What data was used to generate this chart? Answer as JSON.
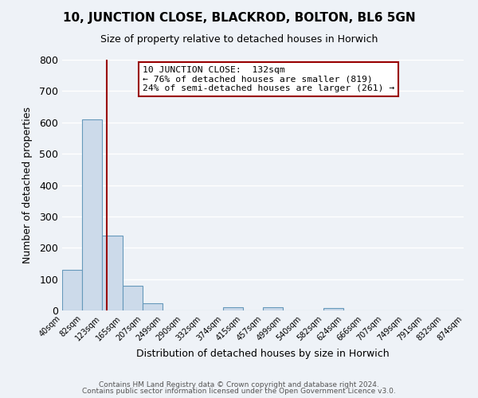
{
  "title": "10, JUNCTION CLOSE, BLACKROD, BOLTON, BL6 5GN",
  "subtitle": "Size of property relative to detached houses in Horwich",
  "xlabel": "Distribution of detached houses by size in Horwich",
  "ylabel": "Number of detached properties",
  "bar_edges": [
    40,
    82,
    123,
    165,
    207,
    249,
    290,
    332,
    374,
    415,
    457,
    499,
    540,
    582,
    624,
    666,
    707,
    749,
    791,
    832,
    874
  ],
  "bar_heights": [
    130,
    610,
    240,
    80,
    22,
    0,
    0,
    0,
    10,
    0,
    10,
    0,
    0,
    8,
    0,
    0,
    0,
    0,
    0,
    0
  ],
  "bar_color": "#ccdaea",
  "bar_edgecolor": "#6699bb",
  "tick_labels": [
    "40sqm",
    "82sqm",
    "123sqm",
    "165sqm",
    "207sqm",
    "249sqm",
    "290sqm",
    "332sqm",
    "374sqm",
    "415sqm",
    "457sqm",
    "499sqm",
    "540sqm",
    "582sqm",
    "624sqm",
    "666sqm",
    "707sqm",
    "749sqm",
    "791sqm",
    "832sqm",
    "874sqm"
  ],
  "ylim": [
    0,
    800
  ],
  "yticks": [
    0,
    100,
    200,
    300,
    400,
    500,
    600,
    700,
    800
  ],
  "vline_x": 132,
  "vline_color": "#990000",
  "annotation_text": "10 JUNCTION CLOSE:  132sqm\n← 76% of detached houses are smaller (819)\n24% of semi-detached houses are larger (261) →",
  "annotation_box_facecolor": "#ffffff",
  "annotation_box_edgecolor": "#990000",
  "footer1": "Contains HM Land Registry data © Crown copyright and database right 2024.",
  "footer2": "Contains public sector information licensed under the Open Government Licence v3.0.",
  "background_color": "#eef2f7",
  "grid_color": "#ffffff"
}
